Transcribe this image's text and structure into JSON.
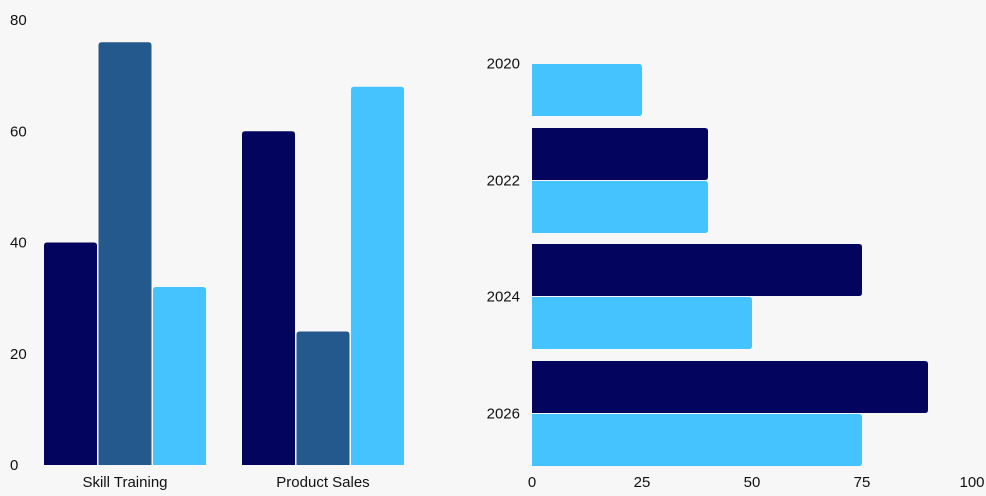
{
  "chart_data": [
    {
      "type": "bar",
      "orientation": "vertical",
      "categories": [
        "Skill Training",
        "Product Sales"
      ],
      "series": [
        {
          "color": "#03045e",
          "values": [
            40,
            60
          ]
        },
        {
          "color": "#23598c",
          "values": [
            76,
            24
          ]
        },
        {
          "color": "#45c3ff",
          "values": [
            32,
            68
          ]
        }
      ],
      "ylim": [
        0,
        80
      ],
      "yticks": [
        "0",
        "20",
        "40",
        "60",
        "80"
      ],
      "grid": false,
      "title": "",
      "xlabel": "",
      "ylabel": ""
    },
    {
      "type": "bar",
      "orientation": "horizontal",
      "categories": [
        "2020",
        "2022",
        "2024",
        "2026"
      ],
      "series": [
        {
          "color": "#03045e",
          "values": [
            0,
            40,
            75,
            90
          ]
        },
        {
          "color": "#45c3ff",
          "values": [
            25,
            40,
            50,
            75
          ]
        }
      ],
      "xlim": [
        0,
        100
      ],
      "xticks": [
        "0",
        "25",
        "50",
        "75",
        "100"
      ],
      "grid": false,
      "title": "",
      "xlabel": "",
      "ylabel": ""
    }
  ]
}
